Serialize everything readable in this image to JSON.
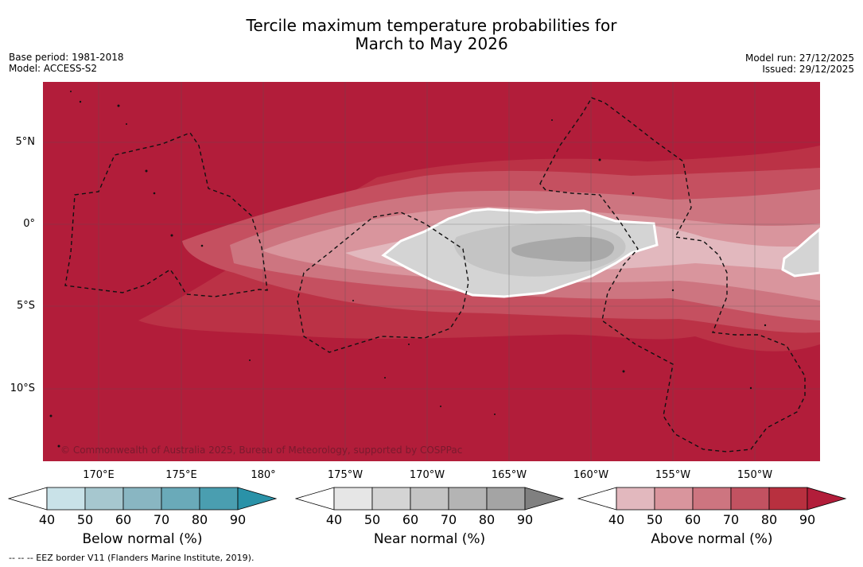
{
  "title_line1": "Tercile maximum temperature probabilities for",
  "title_line2": "March to May 2026",
  "left_meta": {
    "base_period": "Base period: 1981-2018",
    "model": "Model: ACCESS-S2"
  },
  "right_meta": {
    "model_run": "Model run: 27/12/2025",
    "issued": "Issued: 29/12/2025"
  },
  "lat_labels": [
    "5°N",
    "0°",
    "5°S",
    "10°S"
  ],
  "lon_labels": [
    "170°E",
    "175°E",
    "180°",
    "175°W",
    "170°W",
    "165°W",
    "160°W",
    "155°W",
    "150°W"
  ],
  "copyright": "© Commonwealth of Australia 2025, Bureau of Meteorology, supported by COSPPac",
  "legends": [
    {
      "label": "Below normal (%)",
      "ticks": [
        "40",
        "50",
        "60",
        "70",
        "80",
        "90"
      ],
      "colors": [
        "#ffffff",
        "#c9e2e8",
        "#a6c7cf",
        "#89b6c2",
        "#6aaab9",
        "#4a9eb0",
        "#2a92a8"
      ]
    },
    {
      "label": "Near normal (%)",
      "ticks": [
        "40",
        "50",
        "60",
        "70",
        "80",
        "90"
      ],
      "colors": [
        "#ffffff",
        "#e6e6e6",
        "#d4d4d4",
        "#c4c4c4",
        "#b4b4b4",
        "#a4a4a4",
        "#808080"
      ]
    },
    {
      "label": "Above normal (%)",
      "ticks": [
        "40",
        "50",
        "60",
        "70",
        "80",
        "90"
      ],
      "colors": [
        "#ffffff",
        "#e2b8be",
        "#d9959d",
        "#cd7580",
        "#c25261",
        "#b8303f",
        "#b21d3a"
      ]
    }
  ],
  "footnote": "--  --  -- EEZ border V11 (Flanders Marine Institute, 2019).",
  "colors": {
    "map_background": "#b21d3a"
  }
}
